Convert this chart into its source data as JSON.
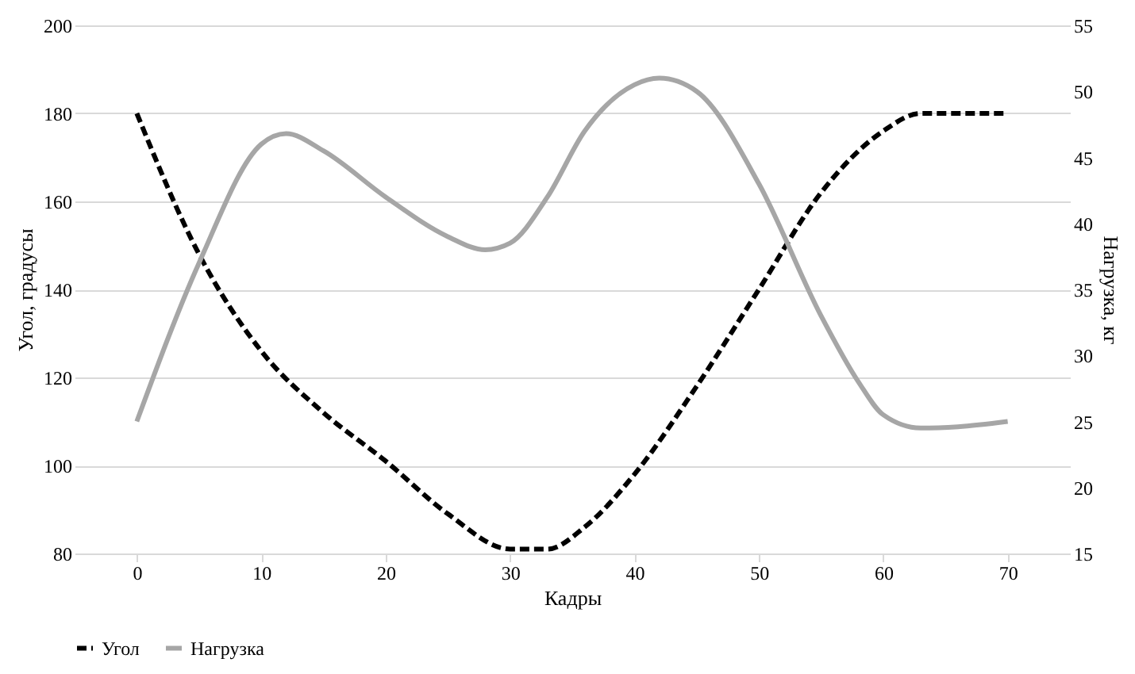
{
  "chart_data": {
    "type": "line",
    "xlabel": "Кадры",
    "ylabel": "Угол, градусы",
    "y2label": "Нагрузка, кг",
    "xlim": [
      -5,
      75
    ],
    "xticks": [
      0,
      10,
      20,
      30,
      40,
      50,
      60,
      70
    ],
    "ylim": [
      80,
      200
    ],
    "yticks": [
      80,
      100,
      120,
      140,
      160,
      180,
      200
    ],
    "y2lim": [
      15,
      55
    ],
    "y2ticks": [
      15,
      20,
      25,
      30,
      35,
      40,
      45,
      50,
      55
    ],
    "grid": "y",
    "legend": "bottom",
    "marker": "none",
    "series": [
      {
        "name": "Угол",
        "color": "#000000",
        "line_style": "dashed",
        "x": [
          0,
          5,
          10,
          15,
          20,
          25,
          30,
          33,
          36,
          40,
          45,
          50,
          55,
          60,
          63,
          66,
          70
        ],
        "values": [
          180,
          148,
          126,
          112,
          101,
          89,
          81,
          81,
          86,
          98,
          118,
          140,
          162,
          176,
          180,
          180,
          180
        ]
      },
      {
        "name": "Нагрузка",
        "color": "#a6a6a6",
        "line_style": "solid",
        "axis": "y2",
        "x": [
          0,
          5,
          10,
          12,
          15,
          20,
          25,
          28,
          30,
          33,
          36,
          40,
          42,
          45,
          50,
          55,
          58,
          60,
          63,
          66,
          70
        ],
        "values": [
          25,
          37,
          46,
          46.8,
          45.5,
          42,
          39,
          38,
          38.5,
          42,
          47,
          50.5,
          51,
          50,
          43,
          33,
          28,
          25.5,
          24.5,
          24.6,
          25
        ]
      }
    ]
  }
}
